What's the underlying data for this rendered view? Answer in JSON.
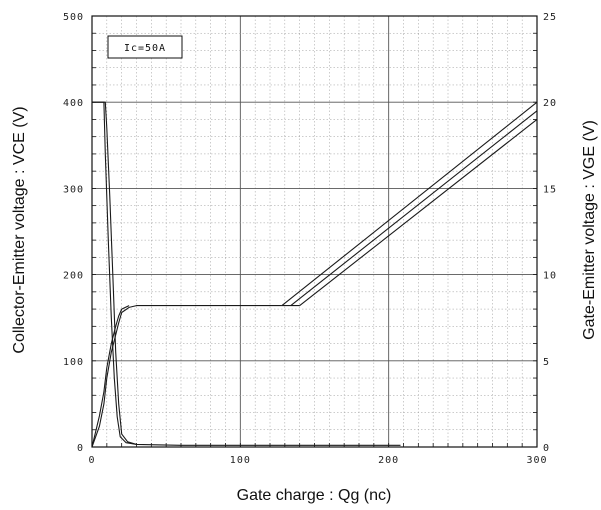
{
  "chart_data": {
    "type": "line",
    "xlabel": "Gate charge : Qg (nc)",
    "ylabel_left": "Collector-Emitter voltage : VCE (V)",
    "ylabel_right": "Gate-Emitter voltage : VGE (V)",
    "annotation": "Ic=50A",
    "xlim": [
      0,
      300
    ],
    "ylim_left": [
      0,
      500
    ],
    "ylim_right": [
      0,
      25
    ],
    "x_ticks": [
      "0",
      "100",
      "200",
      "300"
    ],
    "y_left_ticks": [
      "0",
      "100",
      "200",
      "300",
      "400",
      "500"
    ],
    "y_right_ticks": [
      "0",
      "5",
      "10",
      "15",
      "20",
      "25"
    ],
    "grid": true,
    "series": [
      {
        "axis": "left",
        "x": [
          0,
          9,
          10,
          12,
          14,
          16,
          18,
          20,
          24,
          30,
          60,
          100,
          150,
          208
        ],
        "y": [
          400,
          400,
          370,
          290,
          200,
          110,
          50,
          15,
          6,
          3,
          2,
          2,
          2,
          2
        ]
      },
      {
        "axis": "left",
        "x": [
          0,
          8,
          9,
          11,
          13,
          15,
          17,
          19,
          23,
          30
        ],
        "y": [
          400,
          400,
          340,
          240,
          150,
          80,
          35,
          12,
          5,
          3
        ]
      },
      {
        "axis": "right",
        "x": [
          0,
          5,
          8,
          10,
          13,
          16,
          18,
          20,
          25,
          30,
          60,
          100,
          128
        ],
        "y": [
          0,
          1.2,
          2.5,
          4.0,
          5.5,
          6.5,
          7.2,
          7.8,
          8.1,
          8.2,
          8.2,
          8.2,
          8.2
        ]
      },
      {
        "axis": "right",
        "x": [
          0,
          5,
          8,
          10,
          13,
          16,
          18,
          20,
          25
        ],
        "y": [
          0,
          1.8,
          3.2,
          4.6,
          6.0,
          7.0,
          7.6,
          8.0,
          8.2
        ]
      },
      {
        "axis": "right",
        "x": [
          128,
          300
        ],
        "y": [
          8.2,
          20.0
        ]
      },
      {
        "axis": "right",
        "x": [
          134,
          300
        ],
        "y": [
          8.2,
          19.5
        ]
      },
      {
        "axis": "right",
        "x": [
          140,
          300
        ],
        "y": [
          8.2,
          19.0
        ]
      },
      {
        "axis": "right",
        "x": [
          128,
          140
        ],
        "y": [
          8.2,
          8.2
        ]
      }
    ]
  }
}
